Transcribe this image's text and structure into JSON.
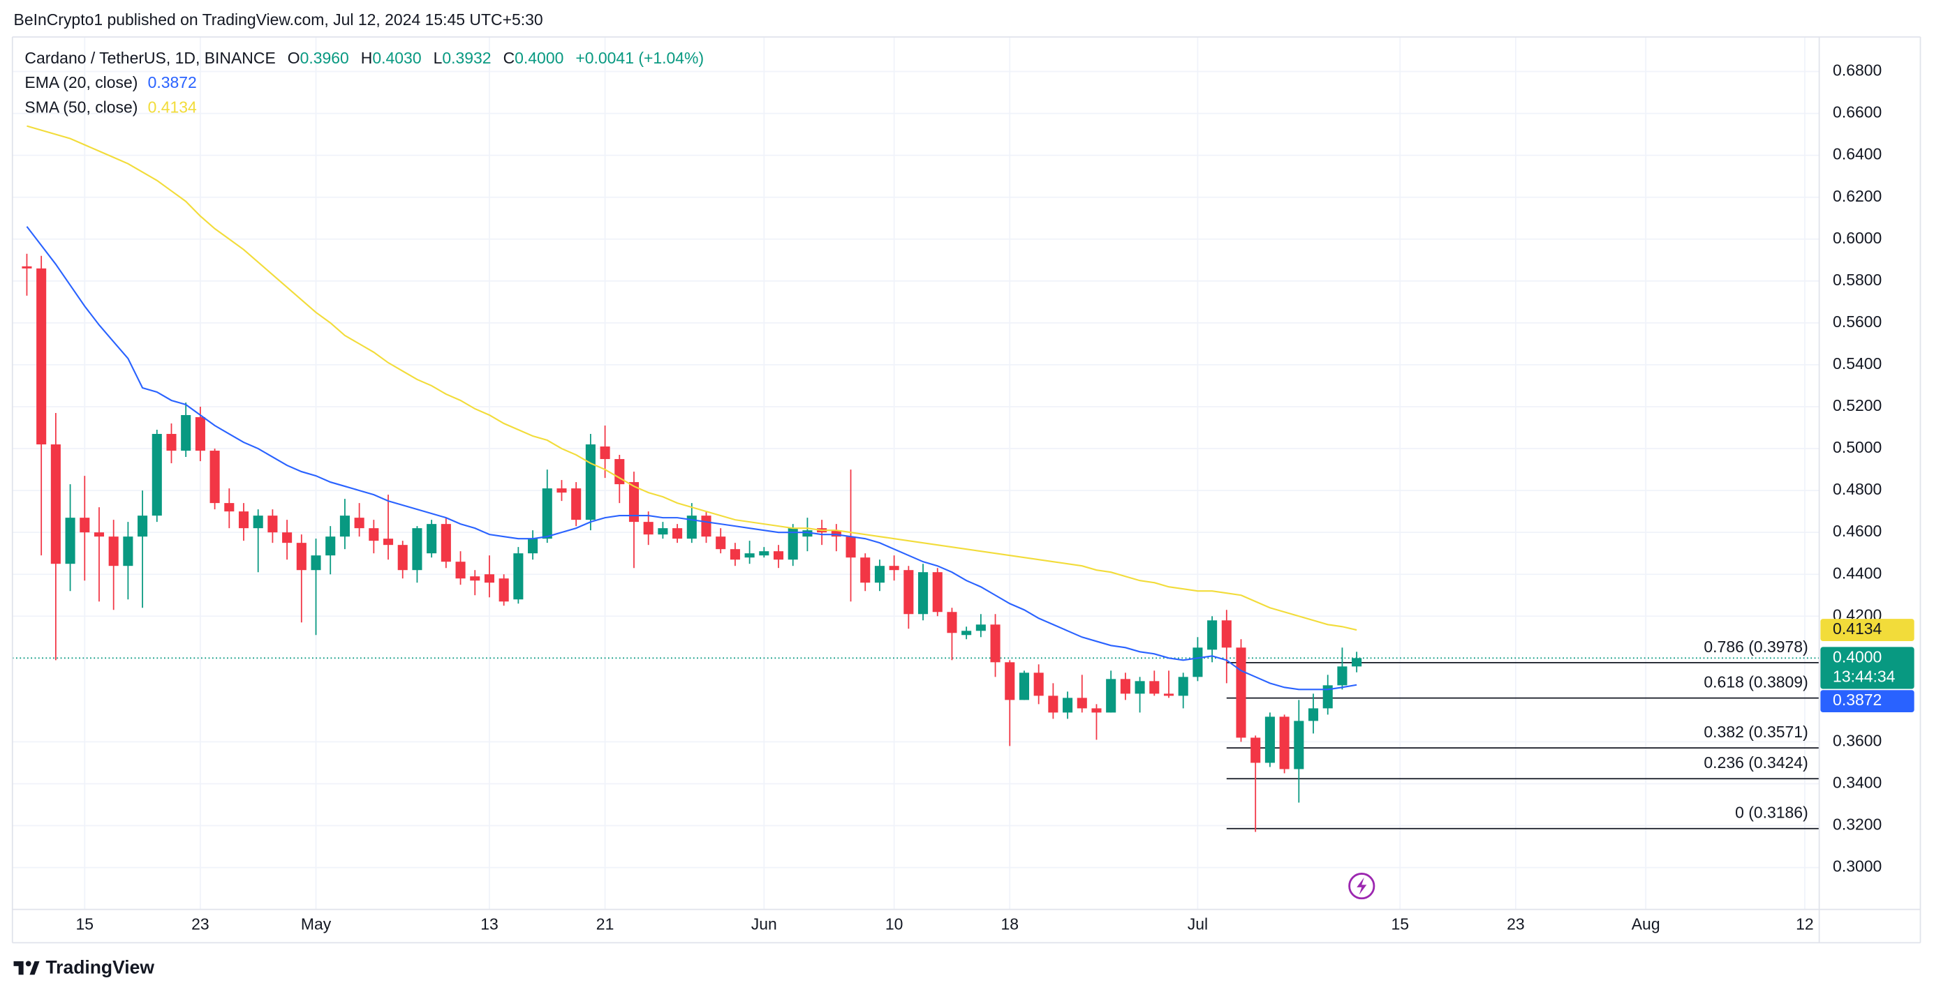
{
  "chart_data": {
    "type": "candlestick",
    "header": "BeInCrypto1 published on TradingView.com, Jul 12, 2024 15:45 UTC+5:30",
    "footer": "TradingView",
    "legend": {
      "symbol": "Cardano / TetherUS, 1D, BINANCE",
      "items": [
        {
          "key": "O",
          "text": "0.3960"
        },
        {
          "key": "H",
          "text": "0.4030"
        },
        {
          "key": "L",
          "text": "0.3932"
        },
        {
          "key": "C",
          "text": "0.4000"
        }
      ],
      "change": "+0.0041 (+1.04%)"
    },
    "countdown": "13:44:34",
    "up_color": "#089981",
    "down_color": "#f23645",
    "x": [
      "04-11",
      "04-12",
      "04-13",
      "04-14",
      "04-15",
      "04-16",
      "04-17",
      "04-18",
      "04-19",
      "04-20",
      "04-21",
      "04-22",
      "04-23",
      "04-24",
      "04-25",
      "04-26",
      "04-27",
      "04-28",
      "04-29",
      "04-30",
      "05-01",
      "05-02",
      "05-03",
      "05-04",
      "05-05",
      "05-06",
      "05-07",
      "05-08",
      "05-09",
      "05-10",
      "05-11",
      "05-12",
      "05-13",
      "05-14",
      "05-15",
      "05-16",
      "05-17",
      "05-18",
      "05-19",
      "05-20",
      "05-21",
      "05-22",
      "05-23",
      "05-24",
      "05-25",
      "05-26",
      "05-27",
      "05-28",
      "05-29",
      "05-30",
      "05-31",
      "06-01",
      "06-02",
      "06-03",
      "06-04",
      "06-05",
      "06-06",
      "06-07",
      "06-08",
      "06-09",
      "06-10",
      "06-11",
      "06-12",
      "06-13",
      "06-14",
      "06-15",
      "06-16",
      "06-17",
      "06-18",
      "06-19",
      "06-20",
      "06-21",
      "06-22",
      "06-23",
      "06-24",
      "06-25",
      "06-26",
      "06-27",
      "06-28",
      "06-29",
      "06-30",
      "07-01",
      "07-02",
      "07-03",
      "07-04",
      "07-05",
      "07-06",
      "07-07",
      "07-08",
      "07-09",
      "07-10",
      "07-11",
      "07-12"
    ],
    "open": [
      0.587,
      0.586,
      0.502,
      0.445,
      0.467,
      0.46,
      0.458,
      0.444,
      0.458,
      0.468,
      0.507,
      0.499,
      0.515,
      0.499,
      0.474,
      0.47,
      0.462,
      0.468,
      0.46,
      0.455,
      0.442,
      0.449,
      0.458,
      0.467,
      0.462,
      0.457,
      0.454,
      0.442,
      0.45,
      0.464,
      0.446,
      0.439,
      0.44,
      0.438,
      0.428,
      0.45,
      0.457,
      0.481,
      0.481,
      0.466,
      0.501,
      0.495,
      0.484,
      0.465,
      0.459,
      0.462,
      0.457,
      0.468,
      0.458,
      0.452,
      0.448,
      0.449,
      0.451,
      0.447,
      0.458,
      0.462,
      0.461,
      0.458,
      0.448,
      0.436,
      0.444,
      0.442,
      0.421,
      0.441,
      0.422,
      0.411,
      0.413,
      0.416,
      0.398,
      0.38,
      0.393,
      0.382,
      0.374,
      0.381,
      0.376,
      0.374,
      0.39,
      0.383,
      0.389,
      0.383,
      0.382,
      0.391,
      0.404,
      0.418,
      0.405,
      0.362,
      0.35,
      0.372,
      0.347,
      0.37,
      0.376,
      0.387,
      0.396
    ],
    "high": [
      0.593,
      0.592,
      0.517,
      0.483,
      0.487,
      0.472,
      0.466,
      0.465,
      0.48,
      0.509,
      0.512,
      0.522,
      0.52,
      0.5,
      0.481,
      0.474,
      0.471,
      0.471,
      0.466,
      0.459,
      0.457,
      0.463,
      0.476,
      0.474,
      0.466,
      0.478,
      0.456,
      0.463,
      0.466,
      0.467,
      0.451,
      0.442,
      0.449,
      0.44,
      0.453,
      0.461,
      0.49,
      0.485,
      0.484,
      0.507,
      0.511,
      0.497,
      0.489,
      0.47,
      0.465,
      0.464,
      0.474,
      0.47,
      0.462,
      0.455,
      0.456,
      0.453,
      0.454,
      0.464,
      0.467,
      0.466,
      0.464,
      0.49,
      0.45,
      0.447,
      0.449,
      0.444,
      0.445,
      0.443,
      0.424,
      0.415,
      0.421,
      0.421,
      0.399,
      0.394,
      0.397,
      0.388,
      0.384,
      0.392,
      0.378,
      0.394,
      0.393,
      0.391,
      0.394,
      0.394,
      0.393,
      0.41,
      0.42,
      0.423,
      0.409,
      0.363,
      0.374,
      0.373,
      0.38,
      0.383,
      0.392,
      0.405,
      0.403
    ],
    "low": [
      0.573,
      0.449,
      0.399,
      0.432,
      0.437,
      0.427,
      0.423,
      0.428,
      0.424,
      0.465,
      0.493,
      0.496,
      0.494,
      0.471,
      0.462,
      0.456,
      0.441,
      0.455,
      0.447,
      0.417,
      0.411,
      0.44,
      0.452,
      0.458,
      0.45,
      0.447,
      0.438,
      0.436,
      0.448,
      0.443,
      0.435,
      0.43,
      0.429,
      0.425,
      0.426,
      0.447,
      0.455,
      0.475,
      0.463,
      0.461,
      0.486,
      0.474,
      0.443,
      0.454,
      0.457,
      0.455,
      0.455,
      0.455,
      0.45,
      0.444,
      0.445,
      0.448,
      0.443,
      0.444,
      0.451,
      0.454,
      0.451,
      0.427,
      0.432,
      0.432,
      0.437,
      0.414,
      0.418,
      0.42,
      0.399,
      0.409,
      0.41,
      0.391,
      0.358,
      0.38,
      0.378,
      0.371,
      0.371,
      0.374,
      0.361,
      0.374,
      0.38,
      0.374,
      0.382,
      0.381,
      0.376,
      0.389,
      0.398,
      0.388,
      0.36,
      0.317,
      0.348,
      0.345,
      0.331,
      0.364,
      0.373,
      0.385,
      0.3932
    ],
    "close": [
      0.586,
      0.502,
      0.445,
      0.467,
      0.46,
      0.458,
      0.444,
      0.458,
      0.468,
      0.507,
      0.499,
      0.516,
      0.499,
      0.474,
      0.47,
      0.462,
      0.468,
      0.46,
      0.455,
      0.442,
      0.449,
      0.458,
      0.468,
      0.462,
      0.456,
      0.454,
      0.442,
      0.462,
      0.464,
      0.446,
      0.438,
      0.437,
      0.436,
      0.427,
      0.45,
      0.457,
      0.481,
      0.479,
      0.466,
      0.502,
      0.495,
      0.483,
      0.465,
      0.459,
      0.462,
      0.457,
      0.468,
      0.458,
      0.452,
      0.447,
      0.45,
      0.451,
      0.447,
      0.462,
      0.461,
      0.46,
      0.458,
      0.448,
      0.436,
      0.444,
      0.442,
      0.421,
      0.441,
      0.422,
      0.412,
      0.413,
      0.416,
      0.398,
      0.38,
      0.393,
      0.382,
      0.374,
      0.381,
      0.376,
      0.374,
      0.39,
      0.383,
      0.389,
      0.383,
      0.382,
      0.391,
      0.405,
      0.418,
      0.405,
      0.362,
      0.35,
      0.372,
      0.347,
      0.37,
      0.376,
      0.387,
      0.396,
      0.4
    ],
    "series": [
      {
        "name": "EMA (20, close)",
        "color": "#2962ff",
        "values": [
          0.606,
          0.597,
          0.588,
          0.578,
          0.568,
          0.559,
          0.551,
          0.543,
          0.529,
          0.527,
          0.523,
          0.521,
          0.516,
          0.511,
          0.507,
          0.503,
          0.5,
          0.496,
          0.492,
          0.489,
          0.487,
          0.484,
          0.482,
          0.48,
          0.478,
          0.475,
          0.473,
          0.471,
          0.469,
          0.467,
          0.464,
          0.462,
          0.459,
          0.458,
          0.457,
          0.457,
          0.458,
          0.46,
          0.462,
          0.465,
          0.467,
          0.468,
          0.468,
          0.468,
          0.467,
          0.467,
          0.466,
          0.465,
          0.464,
          0.463,
          0.462,
          0.461,
          0.46,
          0.46,
          0.46,
          0.459,
          0.459,
          0.458,
          0.457,
          0.455,
          0.452,
          0.449,
          0.446,
          0.444,
          0.441,
          0.437,
          0.434,
          0.43,
          0.426,
          0.423,
          0.419,
          0.416,
          0.413,
          0.41,
          0.408,
          0.406,
          0.405,
          0.403,
          0.402,
          0.4,
          0.399,
          0.4,
          0.401,
          0.399,
          0.394,
          0.391,
          0.388,
          0.386,
          0.385,
          0.385,
          0.385,
          0.386,
          0.3872
        ]
      },
      {
        "name": "SMA (50, close)",
        "color": "#f2dc3a",
        "values": [
          0.654,
          0.652,
          0.65,
          0.648,
          0.645,
          0.642,
          0.639,
          0.636,
          0.632,
          0.628,
          0.623,
          0.618,
          0.611,
          0.605,
          0.6,
          0.595,
          0.589,
          0.583,
          0.577,
          0.571,
          0.565,
          0.56,
          0.554,
          0.55,
          0.546,
          0.541,
          0.537,
          0.533,
          0.53,
          0.526,
          0.523,
          0.519,
          0.516,
          0.512,
          0.509,
          0.506,
          0.504,
          0.5,
          0.497,
          0.493,
          0.49,
          0.486,
          0.482,
          0.479,
          0.477,
          0.474,
          0.472,
          0.47,
          0.468,
          0.466,
          0.465,
          0.464,
          0.463,
          0.462,
          0.462,
          0.461,
          0.461,
          0.46,
          0.459,
          0.458,
          0.457,
          0.456,
          0.455,
          0.454,
          0.453,
          0.452,
          0.451,
          0.45,
          0.449,
          0.448,
          0.447,
          0.446,
          0.445,
          0.444,
          0.442,
          0.441,
          0.439,
          0.437,
          0.436,
          0.434,
          0.433,
          0.432,
          0.432,
          0.431,
          0.43,
          0.427,
          0.424,
          0.422,
          0.42,
          0.418,
          0.416,
          0.415,
          0.4134
        ]
      }
    ],
    "fib": {
      "start": "07-03",
      "color": "#131722",
      "levels": [
        {
          "label": "0.786 (0.3978)",
          "value": 0.3978
        },
        {
          "label": "0.618 (0.3809)",
          "value": 0.3809
        },
        {
          "label": "0.382 (0.3571)",
          "value": 0.3571
        },
        {
          "label": "0.236 (0.3424)",
          "value": 0.3424
        },
        {
          "label": "0 (0.3186)",
          "value": 0.3186
        }
      ]
    },
    "xlim": [
      "04-10",
      "08-13"
    ],
    "xticks": [
      {
        "value": "04-15",
        "label": "15"
      },
      {
        "value": "04-23",
        "label": "23"
      },
      {
        "value": "05-01",
        "label": "May"
      },
      {
        "value": "05-13",
        "label": "13"
      },
      {
        "value": "05-21",
        "label": "21"
      },
      {
        "value": "06-01",
        "label": "Jun"
      },
      {
        "value": "06-10",
        "label": "10"
      },
      {
        "value": "06-18",
        "label": "18"
      },
      {
        "value": "07-01",
        "label": "Jul"
      },
      {
        "value": "07-15",
        "label": "15"
      },
      {
        "value": "07-23",
        "label": "23"
      },
      {
        "value": "08-01",
        "label": "Aug"
      },
      {
        "value": "08-12",
        "label": "12"
      }
    ],
    "ylim": [
      0.28,
      0.6965
    ],
    "yticks": [
      {
        "value": 0.3,
        "label": "0.3000"
      },
      {
        "value": 0.32,
        "label": "0.3200"
      },
      {
        "value": 0.34,
        "label": "0.3400"
      },
      {
        "value": 0.36,
        "label": "0.3600"
      },
      {
        "value": 0.42,
        "label": "0.4200"
      },
      {
        "value": 0.44,
        "label": "0.4400"
      },
      {
        "value": 0.46,
        "label": "0.4600"
      },
      {
        "value": 0.48,
        "label": "0.4800"
      },
      {
        "value": 0.5,
        "label": "0.5000"
      },
      {
        "value": 0.52,
        "label": "0.5200"
      },
      {
        "value": 0.54,
        "label": "0.5400"
      },
      {
        "value": 0.56,
        "label": "0.5600"
      },
      {
        "value": 0.58,
        "label": "0.5800"
      },
      {
        "value": 0.6,
        "label": "0.6000"
      },
      {
        "value": 0.62,
        "label": "0.6200"
      },
      {
        "value": 0.64,
        "label": "0.6400"
      },
      {
        "value": 0.66,
        "label": "0.6600"
      },
      {
        "value": 0.68,
        "label": "0.6800"
      }
    ],
    "grid": true
  }
}
